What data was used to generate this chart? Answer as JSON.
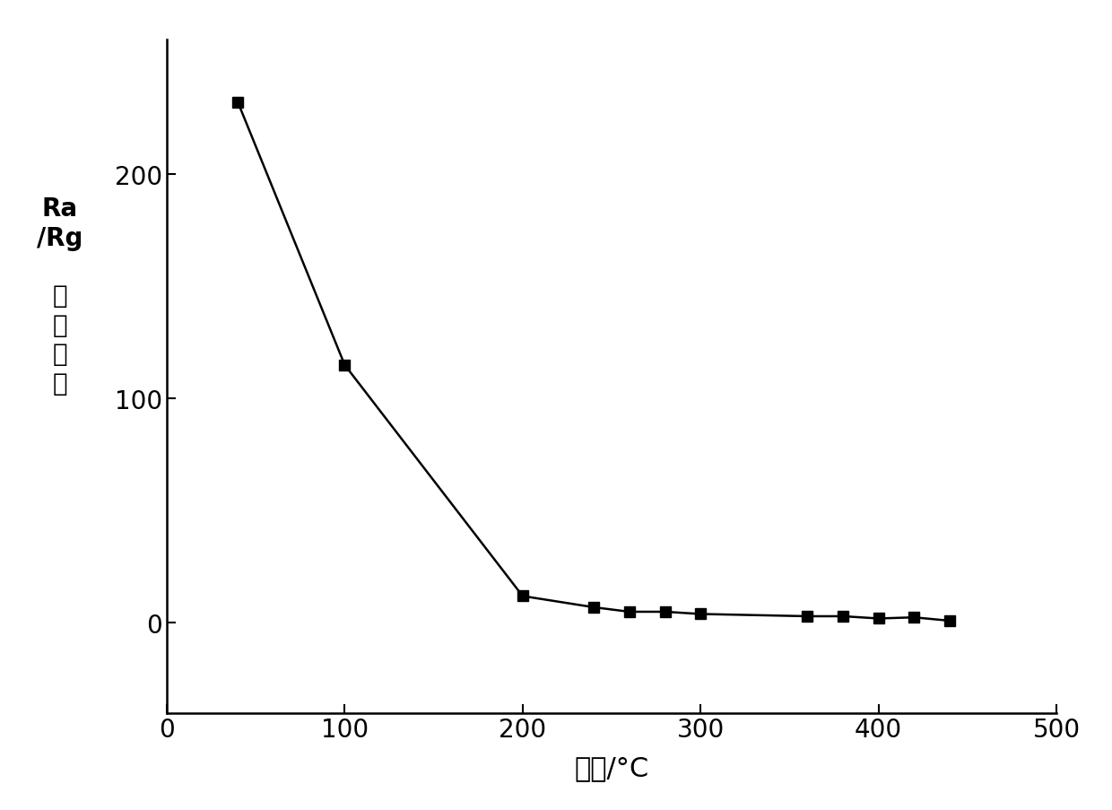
{
  "x": [
    40,
    100,
    200,
    240,
    260,
    280,
    300,
    360,
    380,
    400,
    420,
    440
  ],
  "y": [
    232,
    115,
    12,
    7,
    5,
    5,
    4,
    3,
    3,
    2,
    2.5,
    1
  ],
  "xlabel": "温度/°C",
  "ylabel_line1": "Ra",
  "ylabel_line2": "/Rg",
  "ylabel_line3": "响",
  "ylabel_line4": "应",
  "ylabel_line5": "程",
  "ylabel_line6": "度",
  "xlim": [
    0,
    500
  ],
  "ylim": [
    -40,
    260
  ],
  "xticks": [
    0,
    100,
    200,
    300,
    400,
    500
  ],
  "yticks": [
    0,
    100,
    200
  ],
  "line_color": "#000000",
  "marker": "s",
  "marker_color": "#000000",
  "marker_size": 9,
  "linewidth": 1.8,
  "background_color": "#ffffff",
  "xlabel_fontsize": 22,
  "ylabel_fontsize": 20,
  "tick_fontsize": 20
}
